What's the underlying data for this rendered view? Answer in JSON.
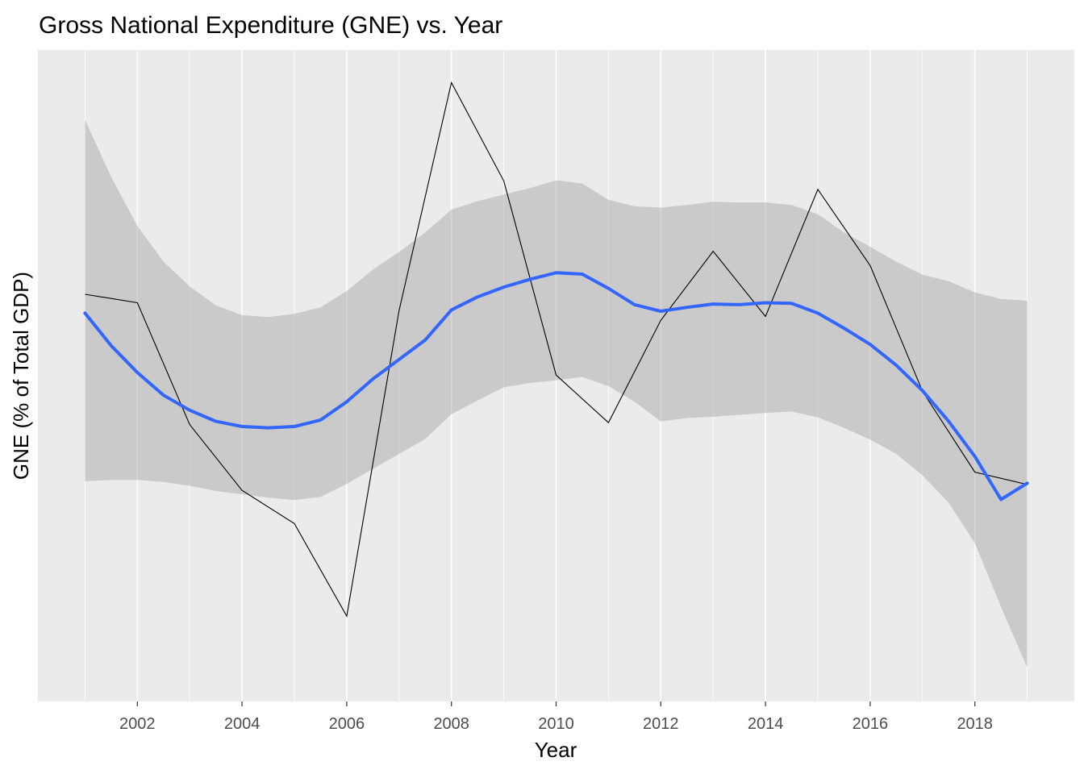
{
  "chart_data": {
    "type": "line",
    "title": "Gross National Expenditure (GNE) vs. Year",
    "xlabel": "Year",
    "ylabel": "GNE (% of Total GDP)",
    "xlim": [
      2000.1,
      2019.9
    ],
    "ylim": [
      0,
      100
    ],
    "x_ticks": [
      2002,
      2004,
      2006,
      2008,
      2010,
      2012,
      2014,
      2016,
      2018
    ],
    "x_tick_labels": [
      "2002",
      "2004",
      "2006",
      "2008",
      "2010",
      "2012",
      "2014",
      "2016",
      "2018"
    ],
    "y_tick_labels_shown": false,
    "grid": true,
    "legend": "none",
    "series": [
      {
        "style": "line",
        "color": "#000000",
        "x": [
          2001,
          2002,
          2003,
          2004,
          2005,
          2006,
          2007,
          2008,
          2009,
          2010,
          2011,
          2012,
          2013,
          2014,
          2015,
          2016,
          2017,
          2018,
          2019
        ],
        "y": [
          62.5,
          61.2,
          42.5,
          32.4,
          27.3,
          13.1,
          60.0,
          95.0,
          79.9,
          50.1,
          42.8,
          58.5,
          69.1,
          59.1,
          78.6,
          66.9,
          47.6,
          35.2,
          33.3
        ]
      },
      {
        "style": "smooth",
        "color": "#3366ff",
        "x": [
          2001,
          2001.5,
          2002,
          2002.5,
          2003,
          2003.5,
          2004,
          2004.5,
          2005,
          2005.5,
          2006,
          2006.5,
          2007,
          2007.5,
          2008,
          2008.5,
          2009,
          2009.5,
          2010,
          2010.5,
          2011,
          2011.5,
          2012,
          2012.5,
          2013,
          2013.5,
          2014,
          2014.5,
          2015,
          2015.5,
          2016,
          2016.5,
          2017,
          2017.5,
          2018,
          2018.5,
          2019
        ],
        "y": [
          59.6,
          54.6,
          50.5,
          47.0,
          44.7,
          43.0,
          42.2,
          42.0,
          42.2,
          43.2,
          46.0,
          49.5,
          52.5,
          55.5,
          60.1,
          62.1,
          63.6,
          64.8,
          65.8,
          65.6,
          63.4,
          60.9,
          59.9,
          60.5,
          61.0,
          60.9,
          61.2,
          61.1,
          59.6,
          57.3,
          54.8,
          51.6,
          47.7,
          43.0,
          37.6,
          31.0,
          33.5
        ]
      },
      {
        "style": "band",
        "color": "#999999",
        "x": [
          2001,
          2001.5,
          2002,
          2002.5,
          2003,
          2003.5,
          2004,
          2004.5,
          2005,
          2005.5,
          2006,
          2006.5,
          2007,
          2007.5,
          2008,
          2008.5,
          2009,
          2009.5,
          2010,
          2010.5,
          2011,
          2011.5,
          2012,
          2012.5,
          2013,
          2013.5,
          2014,
          2014.5,
          2015,
          2015.5,
          2016,
          2016.5,
          2017,
          2017.5,
          2018,
          2018.5,
          2019
        ],
        "upper": [
          89.3,
          80.5,
          73.0,
          67.5,
          63.7,
          60.8,
          59.3,
          59.0,
          59.5,
          60.5,
          63.0,
          66.3,
          69.0,
          72.0,
          75.5,
          76.8,
          77.8,
          78.8,
          80.0,
          79.5,
          77.0,
          76.0,
          75.8,
          76.2,
          76.7,
          76.6,
          76.6,
          76.2,
          74.8,
          72.0,
          69.8,
          67.5,
          65.5,
          64.5,
          62.8,
          61.8,
          61.5
        ],
        "lower": [
          33.8,
          34.0,
          34.0,
          33.7,
          33.1,
          32.3,
          31.8,
          31.3,
          30.9,
          31.4,
          33.4,
          35.7,
          38.0,
          40.3,
          44.1,
          46.2,
          48.2,
          48.9,
          49.3,
          49.8,
          48.4,
          46.0,
          43.0,
          43.5,
          43.7,
          44.0,
          44.3,
          44.5,
          43.6,
          42.0,
          40.2,
          38.0,
          34.7,
          30.5,
          24.3,
          14.5,
          5.2
        ]
      }
    ]
  }
}
